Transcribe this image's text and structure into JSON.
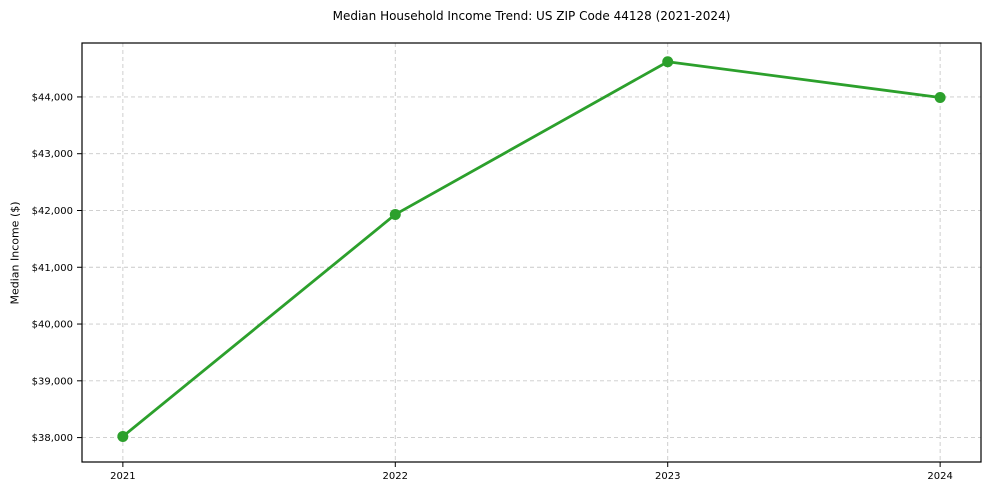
{
  "chart_data": {
    "type": "line",
    "title": "Median Household Income Trend: US ZIP Code 44128 (2021-2024)",
    "xlabel": "",
    "ylabel": "Median Income ($)",
    "categories": [
      "2021",
      "2022",
      "2023",
      "2024"
    ],
    "x": [
      2021,
      2022,
      2023,
      2024
    ],
    "series": [
      {
        "name": "Median Household Income",
        "values": [
          38020,
          41930,
          44620,
          43990
        ]
      }
    ],
    "y_ticks": [
      38000,
      39000,
      40000,
      41000,
      42000,
      43000,
      44000
    ],
    "y_tick_labels": [
      "$38,000",
      "$39,000",
      "$40,000",
      "$41,000",
      "$42,000",
      "$43,000",
      "$44,000"
    ],
    "xlim": [
      2020.85,
      2024.15
    ],
    "ylim": [
      37570,
      44950
    ],
    "grid": true,
    "legend": "none",
    "line_color": "#2ca02c",
    "marker": "circle",
    "marker_color": "#2ca02c",
    "grid_color": "#c9c9c9",
    "axis_color": "#000000",
    "text_color": "#000000",
    "background_color": "#ffffff"
  }
}
